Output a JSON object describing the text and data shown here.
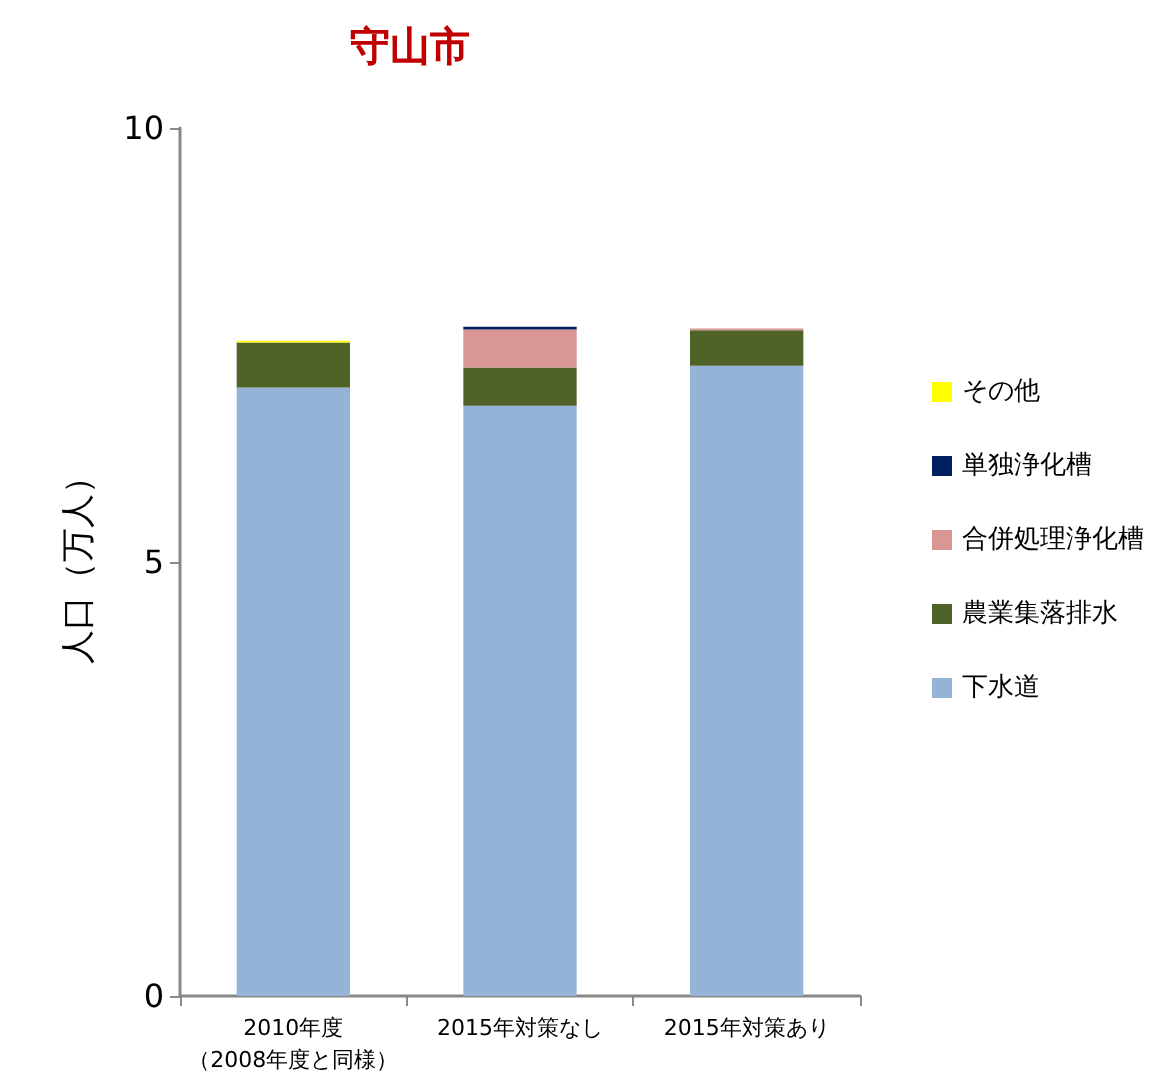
{
  "chart_data": {
    "type": "bar",
    "title": "守山市",
    "ylabel": "人口（万人）",
    "categories": [
      "2010年度（2008年度と同様）",
      "2015年対策なし",
      "2015年対策あり"
    ],
    "stacked": true,
    "series": [
      {
        "name": "下水道",
        "color": "#95b3d7",
        "values": [
          7.01,
          6.8,
          7.26
        ]
      },
      {
        "name": "農業集落排水",
        "color": "#4f6228",
        "values": [
          0.52,
          0.44,
          0.41
        ]
      },
      {
        "name": "合併処理浄化槽",
        "color": "#d99694",
        "values": [
          0,
          0.44,
          0.02
        ]
      },
      {
        "name": "単独浄化槽",
        "color": "#002060",
        "values": [
          0,
          0.03,
          0
        ]
      },
      {
        "name": "その他",
        "color": "#ffff00",
        "values": [
          0.02,
          0,
          0
        ]
      }
    ],
    "ylim": [
      0,
      10
    ],
    "yticks": [
      0,
      5,
      10
    ],
    "grid": false,
    "legend": "right"
  }
}
